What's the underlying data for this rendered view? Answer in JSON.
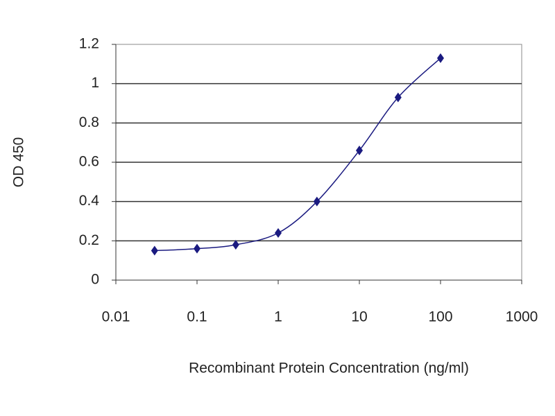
{
  "chart_data": {
    "type": "line",
    "xlabel": "Recombinant Protein Concentration (ng/ml)",
    "ylabel": "OD 450",
    "x": [
      0.03,
      0.1,
      0.3,
      1,
      3,
      10,
      30,
      100
    ],
    "values": [
      0.15,
      0.16,
      0.18,
      0.24,
      0.4,
      0.66,
      0.93,
      1.13
    ],
    "color": "#1a1a80",
    "marker": "diamond",
    "smooth": true,
    "xscale": "log",
    "xlim": [
      0.01,
      1000
    ],
    "xticks": [
      0.01,
      0.1,
      1,
      10,
      100,
      1000
    ],
    "ylim": [
      0,
      1.2
    ],
    "yticks": [
      0,
      0.2,
      0.4,
      0.6,
      0.8,
      1,
      1.2
    ],
    "grid": true
  }
}
